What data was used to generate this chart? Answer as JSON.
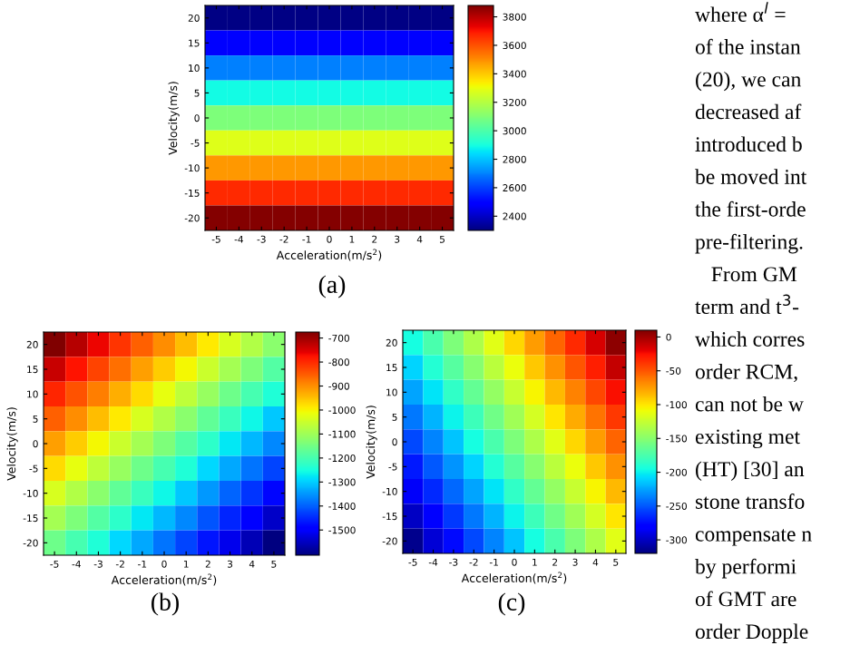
{
  "chart_data": [
    {
      "type": "heatmap",
      "xlabel": "Acceleration(m/s$^{2}$)",
      "ylabel": "Velocity(m/s)",
      "annotations": [
        "(a)"
      ],
      "categories": [
        "-5",
        "-4",
        "-3",
        "-2",
        "-1",
        "0",
        "1",
        "2",
        "3",
        "4",
        "5"
      ],
      "y_categories": [
        "20",
        "15",
        "10",
        "5",
        "0",
        "-5",
        "-10",
        "-15",
        "-20"
      ],
      "cells": [
        [
          2310,
          2310,
          2310,
          2310,
          2310,
          2310,
          2310,
          2310,
          2310,
          2310,
          2310
        ],
        [
          2500,
          2500,
          2500,
          2500,
          2500,
          2500,
          2500,
          2500,
          2500,
          2500,
          2500
        ],
        [
          2700,
          2700,
          2700,
          2700,
          2700,
          2700,
          2700,
          2700,
          2700,
          2700,
          2700
        ],
        [
          2890,
          2890,
          2890,
          2890,
          2890,
          2890,
          2890,
          2890,
          2890,
          2890,
          2890
        ],
        [
          3090,
          3090,
          3090,
          3090,
          3090,
          3090,
          3090,
          3090,
          3090,
          3090,
          3090
        ],
        [
          3280,
          3280,
          3280,
          3280,
          3280,
          3280,
          3280,
          3280,
          3280,
          3280,
          3280
        ],
        [
          3480,
          3480,
          3480,
          3480,
          3480,
          3480,
          3480,
          3480,
          3480,
          3480,
          3480
        ],
        [
          3670,
          3670,
          3670,
          3670,
          3670,
          3670,
          3670,
          3670,
          3670,
          3670,
          3670
        ],
        [
          3870,
          3870,
          3870,
          3870,
          3870,
          3870,
          3870,
          3870,
          3870,
          3870,
          3870
        ]
      ],
      "clim": [
        2300,
        3880
      ],
      "cticks": [
        2400,
        2600,
        2800,
        3000,
        3200,
        3400,
        3600,
        3800
      ]
    },
    {
      "type": "heatmap",
      "xlabel": "Acceleration(m/s$^{2}$)",
      "ylabel": "Velocity(m/s)",
      "annotations": [
        "(b)"
      ],
      "categories": [
        "-5",
        "-4",
        "-3",
        "-2",
        "-1",
        "0",
        "1",
        "2",
        "3",
        "4",
        "5"
      ],
      "y_categories": [
        "20",
        "15",
        "10",
        "5",
        "0",
        "-5",
        "-10",
        "-15",
        "-20"
      ],
      "cells": [
        [
          -675,
          -720,
          -765,
          -810,
          -855,
          -900,
          -945,
          -990,
          -1035,
          -1080,
          -1125
        ],
        [
          -735,
          -780,
          -825,
          -870,
          -915,
          -960,
          -1005,
          -1050,
          -1095,
          -1140,
          -1185
        ],
        [
          -795,
          -840,
          -885,
          -930,
          -975,
          -1020,
          -1065,
          -1110,
          -1155,
          -1200,
          -1245
        ],
        [
          -855,
          -900,
          -945,
          -990,
          -1035,
          -1080,
          -1125,
          -1170,
          -1215,
          -1260,
          -1305
        ],
        [
          -915,
          -960,
          -1005,
          -1050,
          -1095,
          -1140,
          -1185,
          -1230,
          -1275,
          -1320,
          -1365
        ],
        [
          -975,
          -1020,
          -1065,
          -1110,
          -1155,
          -1200,
          -1245,
          -1290,
          -1335,
          -1380,
          -1425
        ],
        [
          -1035,
          -1080,
          -1125,
          -1170,
          -1215,
          -1260,
          -1305,
          -1350,
          -1395,
          -1440,
          -1485
        ],
        [
          -1095,
          -1140,
          -1185,
          -1230,
          -1275,
          -1320,
          -1365,
          -1410,
          -1455,
          -1500,
          -1545
        ],
        [
          -1155,
          -1200,
          -1245,
          -1290,
          -1335,
          -1380,
          -1425,
          -1470,
          -1515,
          -1560,
          -1605
        ]
      ],
      "clim": [
        -1605,
        -675
      ],
      "cticks": [
        -700,
        -800,
        -900,
        -1000,
        -1100,
        -1200,
        -1300,
        -1400,
        -1500
      ]
    },
    {
      "type": "heatmap",
      "xlabel": "Acceleration(m/s$^{2}$)",
      "ylabel": "Velocity(m/s)",
      "annotations": [
        "(c)"
      ],
      "categories": [
        "-5",
        "-4",
        "-3",
        "-2",
        "-1",
        "0",
        "1",
        "2",
        "3",
        "4",
        "5"
      ],
      "y_categories": [
        "20",
        "15",
        "10",
        "5",
        "0",
        "-5",
        "-10",
        "-15",
        "-20"
      ],
      "cells": [
        [
          -195,
          -175,
          -155,
          -135,
          -115,
          -95,
          -75,
          -55,
          -35,
          -15,
          5
        ],
        [
          -210,
          -190,
          -170,
          -150,
          -130,
          -110,
          -90,
          -70,
          -50,
          -30,
          -10
        ],
        [
          -225,
          -205,
          -185,
          -165,
          -145,
          -125,
          -105,
          -85,
          -65,
          -45,
          -25
        ],
        [
          -240,
          -220,
          -200,
          -180,
          -160,
          -140,
          -120,
          -100,
          -80,
          -60,
          -40
        ],
        [
          -255,
          -235,
          -215,
          -195,
          -175,
          -155,
          -135,
          -115,
          -95,
          -75,
          -55
        ],
        [
          -270,
          -250,
          -230,
          -210,
          -190,
          -170,
          -150,
          -130,
          -110,
          -90,
          -70
        ],
        [
          -285,
          -265,
          -245,
          -225,
          -205,
          -185,
          -165,
          -145,
          -125,
          -105,
          -85
        ],
        [
          -300,
          -280,
          -260,
          -240,
          -220,
          -200,
          -180,
          -160,
          -140,
          -120,
          -100
        ],
        [
          -315,
          -295,
          -275,
          -255,
          -235,
          -215,
          -195,
          -175,
          -155,
          -135,
          -115
        ]
      ],
      "clim": [
        -320,
        10
      ],
      "cticks": [
        0,
        -50,
        -100,
        -150,
        -200,
        -250,
        -300
      ]
    },
    {
      "type": "other",
      "annotations": [
        "where α$^{l}$ =",
        "of the instan",
        "(20), we can",
        "decreased af",
        "introduced b",
        "be moved int",
        "the first-orde",
        "pre-filtering.",
        "   From GM",
        "term and t$^{3}$-",
        "which corres",
        "order RCM,",
        "can not be w",
        "existing met",
        "(HT) [30] an",
        "stone transfo",
        "compensate n",
        "by performi",
        "of GMT are",
        "order Dopple"
      ]
    }
  ]
}
